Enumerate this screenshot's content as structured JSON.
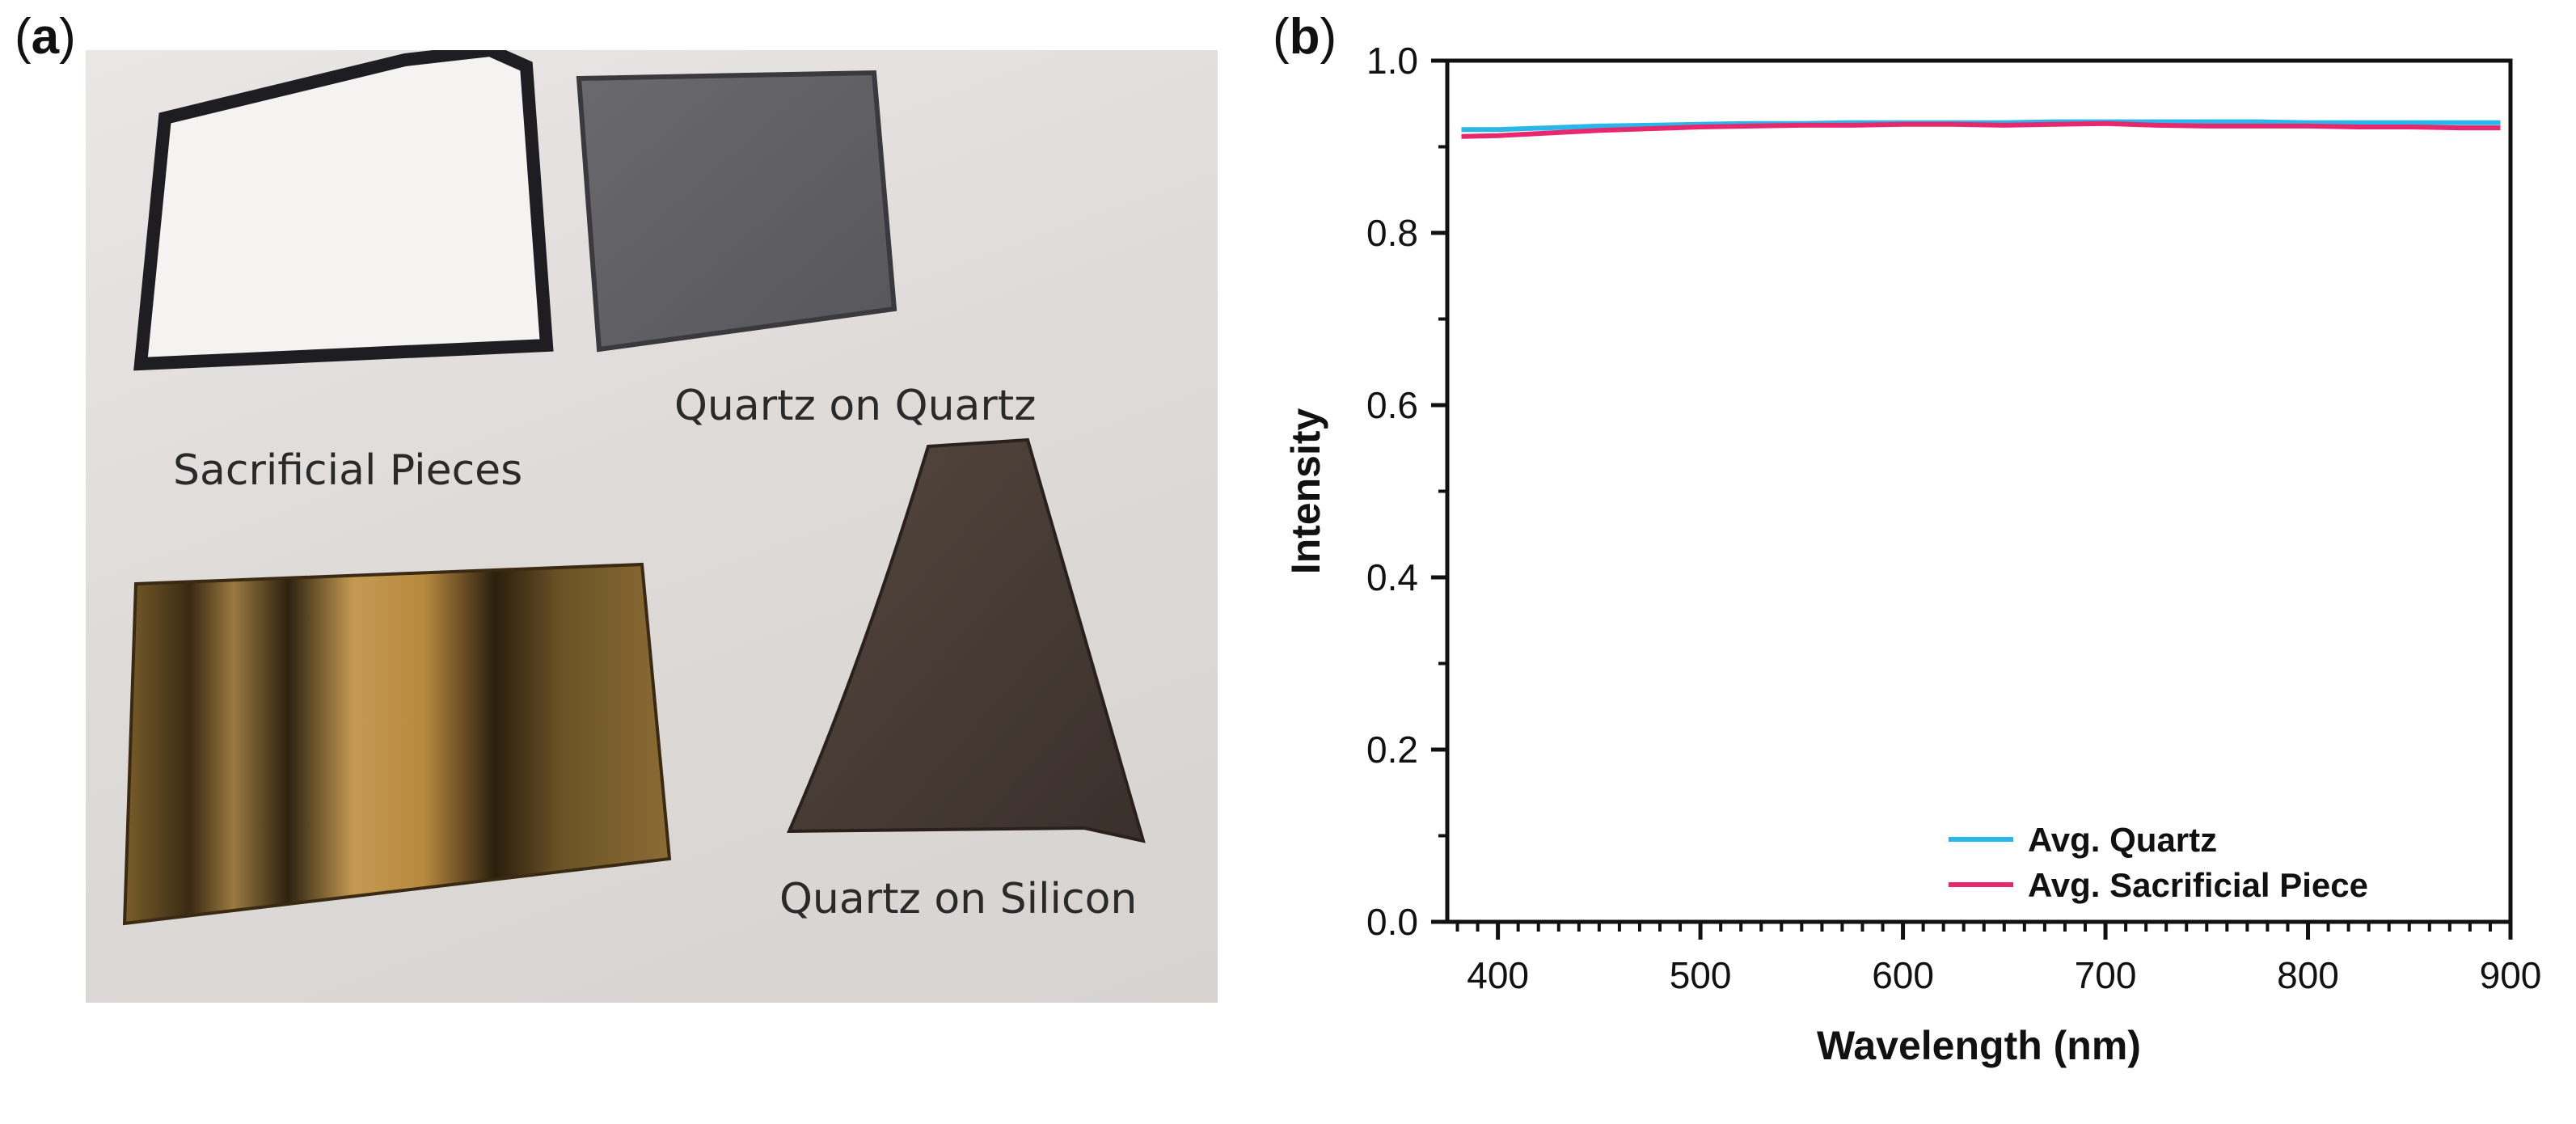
{
  "panel_a": {
    "label": "a",
    "captions": {
      "sacrificial": "Sacrificial Pieces",
      "quartz_on_quartz": "Quartz on Quartz",
      "quartz_on_silicon": "Quartz on Silicon"
    }
  },
  "panel_b": {
    "label": "b"
  },
  "chart_data": {
    "type": "line",
    "title": "",
    "xlabel": "Wavelength (nm)",
    "ylabel": "Intensity",
    "xlim": [
      375,
      900
    ],
    "ylim": [
      0.0,
      1.0
    ],
    "xticks": [
      400,
      500,
      600,
      700,
      800,
      900
    ],
    "yticks": [
      "0.0",
      "0.2",
      "0.4",
      "0.6",
      "0.8",
      "1.0"
    ],
    "legend_position": "bottom-right",
    "x": [
      382,
      400,
      425,
      450,
      475,
      500,
      525,
      550,
      575,
      600,
      625,
      650,
      675,
      700,
      725,
      750,
      775,
      800,
      825,
      850,
      875,
      895
    ],
    "series": [
      {
        "name": "Avg. Quartz",
        "color": "#29b6e8",
        "values": [
          0.92,
          0.92,
          0.922,
          0.924,
          0.925,
          0.926,
          0.927,
          0.927,
          0.928,
          0.928,
          0.928,
          0.928,
          0.929,
          0.929,
          0.929,
          0.929,
          0.929,
          0.928,
          0.928,
          0.928,
          0.928,
          0.928
        ]
      },
      {
        "name": "Avg. Sacrificial Piece",
        "color": "#e8286e",
        "values": [
          0.912,
          0.913,
          0.916,
          0.919,
          0.921,
          0.923,
          0.924,
          0.925,
          0.925,
          0.926,
          0.926,
          0.925,
          0.926,
          0.927,
          0.925,
          0.924,
          0.924,
          0.924,
          0.923,
          0.923,
          0.922,
          0.922
        ]
      }
    ]
  }
}
